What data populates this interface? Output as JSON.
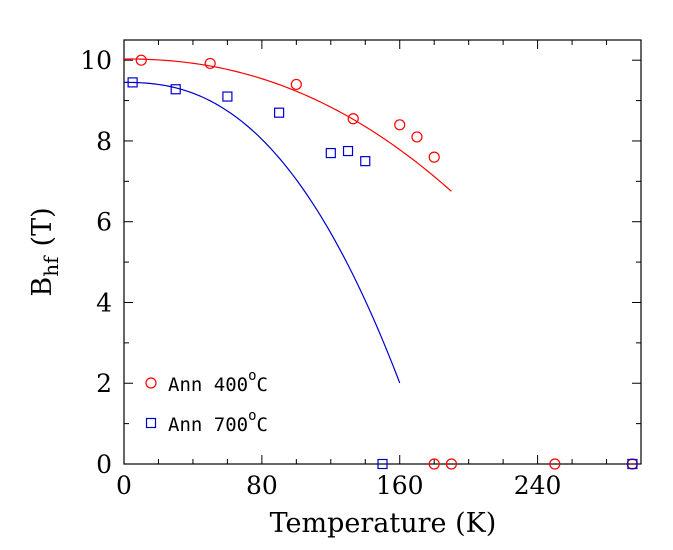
{
  "chart_data": {
    "type": "scatter",
    "xlabel": "Temperature (K)",
    "ylabel_main": "B",
    "ylabel_sub": "hf",
    "ylabel_unit": "(T)",
    "xlim": [
      0,
      300
    ],
    "ylim": [
      0,
      10.5
    ],
    "x_ticks": [
      0,
      80,
      160,
      240
    ],
    "y_ticks": [
      0,
      2,
      4,
      6,
      8,
      10
    ],
    "x_tick_labels": [
      "0",
      "80",
      "160",
      "240"
    ],
    "y_tick_labels": [
      "0",
      "2",
      "4",
      "6",
      "8",
      "10"
    ],
    "grid": false,
    "legend_position": "bottom-left",
    "series": [
      {
        "name": "Ann 400",
        "name_sup": "o",
        "name_suffix": "C",
        "marker": "circle",
        "color": "#ff0000",
        "points": [
          [
            10,
            10.0
          ],
          [
            50,
            9.92
          ],
          [
            100,
            9.4
          ],
          [
            133,
            8.55
          ],
          [
            160,
            8.4
          ],
          [
            170,
            8.1
          ],
          [
            180,
            7.6
          ],
          [
            180,
            0.0
          ],
          [
            190,
            0.0
          ],
          [
            250,
            0.0
          ],
          [
            295,
            0.0
          ]
        ],
        "fit": {
          "x_start": 0,
          "x_end": 190,
          "B0": 10.03,
          "a": 3.17e-06,
          "n": 2.2
        }
      },
      {
        "name": "Ann 700",
        "name_sup": "o",
        "name_suffix": "C",
        "marker": "square",
        "color": "#0000cc",
        "points": [
          [
            5,
            9.45
          ],
          [
            30,
            9.28
          ],
          [
            60,
            9.1
          ],
          [
            90,
            8.7
          ],
          [
            120,
            7.7
          ],
          [
            130,
            7.75
          ],
          [
            140,
            7.5
          ],
          [
            150,
            0.0
          ],
          [
            295,
            0.0
          ]
        ],
        "fit": {
          "x_start": 0,
          "x_end": 160,
          "B0": 9.45,
          "a": 4.04e-06,
          "n": 2.4
        }
      }
    ]
  }
}
